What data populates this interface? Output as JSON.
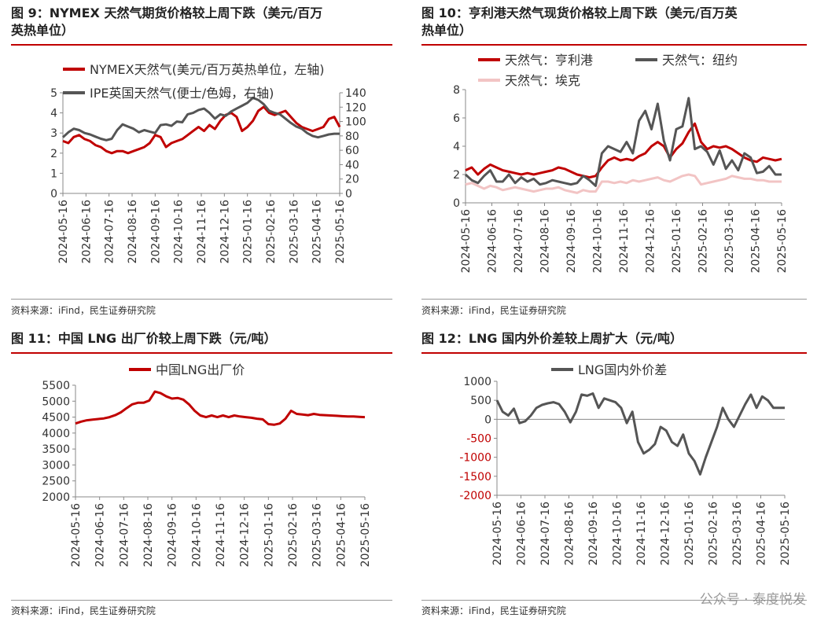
{
  "charts": [
    {
      "id": "fig9",
      "title": "图 9：NYMEX 天然气期货价格较上周下跌（美元/百万\n英热单位）",
      "source": "资料来源：iFind，民生证券研究院",
      "chart_data": {
        "type": "line",
        "x_ticks": [
          "2024-05-16",
          "2024-06-16",
          "2024-07-16",
          "2024-08-16",
          "2024-09-16",
          "2024-10-16",
          "2024-11-16",
          "2024-12-16",
          "2025-01-16",
          "2025-02-16",
          "2025-03-16",
          "2025-04-16",
          "2025-05-16"
        ],
        "y_left": {
          "range": [
            0,
            5
          ],
          "ticks": [
            "0",
            "1",
            "2",
            "3",
            "4",
            "5"
          ]
        },
        "y_right": {
          "range": [
            0,
            140
          ],
          "ticks": [
            "0",
            "20",
            "40",
            "60",
            "80",
            "100",
            "120",
            "140"
          ]
        },
        "series": [
          {
            "name": "NYMEX天然气(美元/百万英热单位，左轴)",
            "axis": "left",
            "color": "#c00000",
            "values": [
              2.6,
              2.5,
              2.8,
              2.9,
              2.7,
              2.6,
              2.4,
              2.3,
              2.1,
              2.0,
              2.1,
              2.1,
              2.0,
              2.1,
              2.2,
              2.3,
              2.5,
              2.9,
              2.8,
              2.3,
              2.5,
              2.6,
              2.7,
              2.9,
              3.1,
              3.3,
              3.1,
              3.4,
              3.2,
              3.6,
              3.9,
              4.0,
              3.8,
              3.1,
              3.3,
              3.6,
              4.1,
              4.3,
              4.0,
              3.9,
              4.0,
              4.1,
              3.8,
              3.5,
              3.3,
              3.2,
              3.1,
              3.2,
              3.3,
              3.7,
              3.8,
              3.3
            ]
          },
          {
            "name": "IPE英国天然气(便士/色姆，右轴)",
            "axis": "right",
            "color": "#555555",
            "values": [
              78,
              85,
              90,
              88,
              84,
              82,
              79,
              76,
              74,
              76,
              88,
              96,
              93,
              90,
              85,
              88,
              86,
              84,
              95,
              96,
              94,
              100,
              99,
              110,
              112,
              116,
              118,
              112,
              104,
              110,
              108,
              114,
              118,
              122,
              126,
              133,
              130,
              124,
              115,
              112,
              110,
              104,
              98,
              93,
              90,
              84,
              80,
              78,
              80,
              82,
              83,
              83
            ]
          }
        ]
      }
    },
    {
      "id": "fig10",
      "title": "图 10：亨利港天然气现货价格较上周下跌（美元/百万英\n热单位）",
      "source": "资料来源：iFind，民生证券研究院",
      "chart_data": {
        "type": "line",
        "x_ticks": [
          "2024-05-16",
          "2024-06-16",
          "2024-07-16",
          "2024-08-16",
          "2024-09-16",
          "2024-10-16",
          "2024-11-16",
          "2024-12-16",
          "2025-01-16",
          "2025-02-16",
          "2025-03-16",
          "2025-04-16",
          "2025-05-16"
        ],
        "y_left": {
          "range": [
            0,
            8
          ],
          "ticks": [
            "0",
            "2",
            "4",
            "6",
            "8"
          ]
        },
        "series": [
          {
            "name": "天然气：亨利港",
            "color": "#c00000",
            "values": [
              2.3,
              2.5,
              2.0,
              2.4,
              2.7,
              2.5,
              2.3,
              2.2,
              2.1,
              2.0,
              2.1,
              2.0,
              2.1,
              2.2,
              2.3,
              2.5,
              2.4,
              2.2,
              2.0,
              1.9,
              1.8,
              1.9,
              2.5,
              3.0,
              3.2,
              3.0,
              3.1,
              3.0,
              3.3,
              3.5,
              4.0,
              4.3,
              4.0,
              3.2,
              3.8,
              4.2,
              5.0,
              5.6,
              4.3,
              3.8,
              4.0,
              3.9,
              4.0,
              3.8,
              3.5,
              3.2,
              3.0,
              2.9,
              3.2,
              3.1,
              3.0,
              3.1
            ]
          },
          {
            "name": "天然气：纽约",
            "color": "#555555",
            "values": [
              2.0,
              1.6,
              1.4,
              1.9,
              2.3,
              1.5,
              1.5,
              2.0,
              1.4,
              1.8,
              1.5,
              1.7,
              1.3,
              1.4,
              1.6,
              1.5,
              1.4,
              1.3,
              1.4,
              1.9,
              1.6,
              1.2,
              3.5,
              4.0,
              3.8,
              3.6,
              4.3,
              3.5,
              5.8,
              6.5,
              5.2,
              7.0,
              4.4,
              3.0,
              5.2,
              5.4,
              7.4,
              3.8,
              4.0,
              3.6,
              2.7,
              3.7,
              2.4,
              3.0,
              2.3,
              3.5,
              3.2,
              2.1,
              2.2,
              2.6,
              2.0,
              2.0
            ]
          },
          {
            "name": "天然气：埃克",
            "color": "#f2c4c4",
            "values": [
              1.3,
              1.4,
              1.2,
              1.0,
              1.2,
              1.1,
              0.9,
              1.0,
              1.1,
              1.0,
              0.9,
              0.8,
              0.9,
              1.0,
              1.0,
              1.1,
              0.9,
              0.8,
              0.7,
              0.9,
              0.8,
              0.8,
              1.5,
              1.5,
              1.4,
              1.5,
              1.4,
              1.6,
              1.5,
              1.6,
              1.7,
              1.8,
              1.6,
              1.5,
              1.7,
              1.9,
              2.0,
              1.9,
              1.3,
              1.4,
              1.5,
              1.6,
              1.7,
              1.9,
              1.8,
              1.7,
              1.7,
              1.6,
              1.6,
              1.5,
              1.5,
              1.5
            ]
          }
        ]
      }
    },
    {
      "id": "fig11",
      "title": "图 11：中国 LNG 出厂价较上周下跌（元/吨）",
      "source": "资料来源：iFind，民生证券研究院",
      "chart_data": {
        "type": "line",
        "x_ticks": [
          "2024-05-16",
          "2024-06-16",
          "2024-07-16",
          "2024-08-16",
          "2024-09-16",
          "2024-10-16",
          "2024-11-16",
          "2024-12-16",
          "2025-01-16",
          "2025-02-16",
          "2025-03-16",
          "2025-04-16",
          "2025-05-16"
        ],
        "y_left": {
          "range": [
            2000,
            5500
          ],
          "ticks": [
            "2000",
            "2500",
            "3000",
            "3500",
            "4000",
            "4500",
            "5000",
            "5500"
          ]
        },
        "series": [
          {
            "name": "中国LNG出厂价",
            "color": "#c00000",
            "values": [
              4300,
              4360,
              4400,
              4420,
              4440,
              4460,
              4500,
              4560,
              4650,
              4780,
              4900,
              4950,
              4950,
              5020,
              5300,
              5250,
              5150,
              5080,
              5100,
              5050,
              4900,
              4700,
              4550,
              4500,
              4550,
              4500,
              4550,
              4500,
              4550,
              4520,
              4500,
              4480,
              4450,
              4430,
              4280,
              4260,
              4300,
              4450,
              4700,
              4600,
              4580,
              4560,
              4600,
              4570,
              4560,
              4550,
              4540,
              4530,
              4520,
              4520,
              4510,
              4500
            ]
          }
        ]
      }
    },
    {
      "id": "fig12",
      "title": "图 12：LNG 国内外价差较上周扩大（元/吨）",
      "source": "资料来源：iFind，民生证券研究院",
      "chart_data": {
        "type": "line",
        "x_ticks": [
          "2024-05-16",
          "2024-06-16",
          "2024-07-16",
          "2024-08-16",
          "2024-09-16",
          "2024-10-16",
          "2024-11-16",
          "2024-12-16",
          "2025-01-16",
          "2025-02-16",
          "2025-03-16",
          "2025-04-16",
          "2025-05-16"
        ],
        "y_left": {
          "range": [
            -2000,
            1000
          ],
          "ticks": [
            "1000",
            "500",
            "0",
            "-500",
            "-1000",
            "-1500",
            "-2000"
          ],
          "negative_color": "#c00000"
        },
        "series": [
          {
            "name": "LNG国内外价差",
            "color": "#555555",
            "values": [
              500,
              200,
              100,
              280,
              -100,
              -50,
              100,
              300,
              380,
              420,
              450,
              400,
              200,
              -80,
              200,
              650,
              620,
              680,
              300,
              550,
              500,
              450,
              300,
              -100,
              200,
              -600,
              -900,
              -800,
              -650,
              -200,
              -300,
              -600,
              -700,
              -400,
              -900,
              -1100,
              -1450,
              -1000,
              -600,
              -200,
              300,
              0,
              -200,
              100,
              400,
              650,
              300,
              600,
              500,
              300,
              300,
              300
            ]
          }
        ]
      }
    }
  ],
  "watermark": "公众号 · 泰度悦发"
}
